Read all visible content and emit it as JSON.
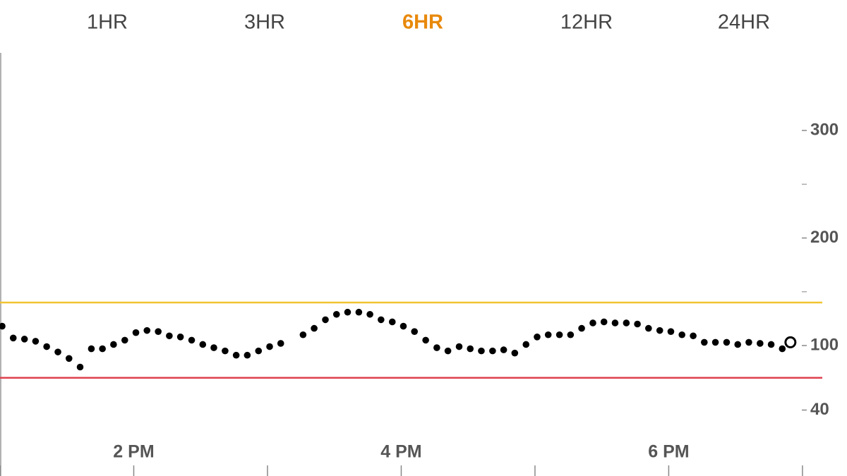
{
  "tabs": [
    "1HR",
    "3HR",
    "6HR",
    "12HR",
    "24HR"
  ],
  "active_tab": 2,
  "chart_data": {
    "type": "scatter",
    "x": [
      13.016,
      13.099,
      13.183,
      13.266,
      13.349,
      13.433,
      13.516,
      13.599,
      13.683,
      13.766,
      13.849,
      13.933,
      14.016,
      14.099,
      14.183,
      14.266,
      14.349,
      14.433,
      14.516,
      14.599,
      14.683,
      14.766,
      14.849,
      14.933,
      15.016,
      15.099,
      15.183,
      15.266,
      15.349,
      15.433,
      15.516,
      15.599,
      15.683,
      15.766,
      15.849,
      15.933,
      16.016,
      16.099,
      16.183,
      16.266,
      16.349,
      16.433,
      16.516,
      16.599,
      16.683,
      16.766,
      16.849,
      16.933,
      17.016,
      17.099,
      17.183,
      17.266,
      17.349,
      17.433,
      17.516,
      17.599,
      17.683,
      17.766,
      17.849,
      17.933,
      18.016,
      18.099,
      18.183,
      18.266,
      18.349,
      18.433,
      18.516,
      18.599,
      18.683,
      18.766,
      18.849
    ],
    "values": [
      118,
      107,
      106,
      104,
      99,
      94,
      88,
      80,
      97,
      97,
      101,
      105,
      112,
      114,
      113,
      109,
      108,
      105,
      101,
      98,
      95,
      91,
      91,
      95,
      99,
      102,
      null,
      110,
      116,
      124,
      129,
      131,
      131,
      129,
      124,
      122,
      118,
      113,
      105,
      98,
      95,
      99,
      97,
      95,
      95,
      96,
      93,
      101,
      108,
      110,
      110,
      110,
      116,
      121,
      122,
      121,
      121,
      120,
      116,
      114,
      113,
      110,
      109,
      103,
      103,
      103,
      101,
      103,
      102,
      101,
      97
    ],
    "color": "#000000",
    "current": {
      "x": 18.91,
      "value": 103
    },
    "high_threshold": 140,
    "high_color": "#f0c430",
    "low_threshold": 70,
    "low_color": "#e04050",
    "xlim": [
      13,
      19.333
    ],
    "xticks": [
      {
        "value": 14,
        "label": "2 PM"
      },
      {
        "value": 16,
        "label": "4 PM"
      },
      {
        "value": 18,
        "label": "6 PM"
      }
    ],
    "xminorticks": [
      13,
      15,
      17,
      19
    ],
    "ylim": [
      20,
      360
    ],
    "yticks": [
      40,
      100,
      200,
      300
    ],
    "yminorticks": [
      150,
      250
    ]
  }
}
